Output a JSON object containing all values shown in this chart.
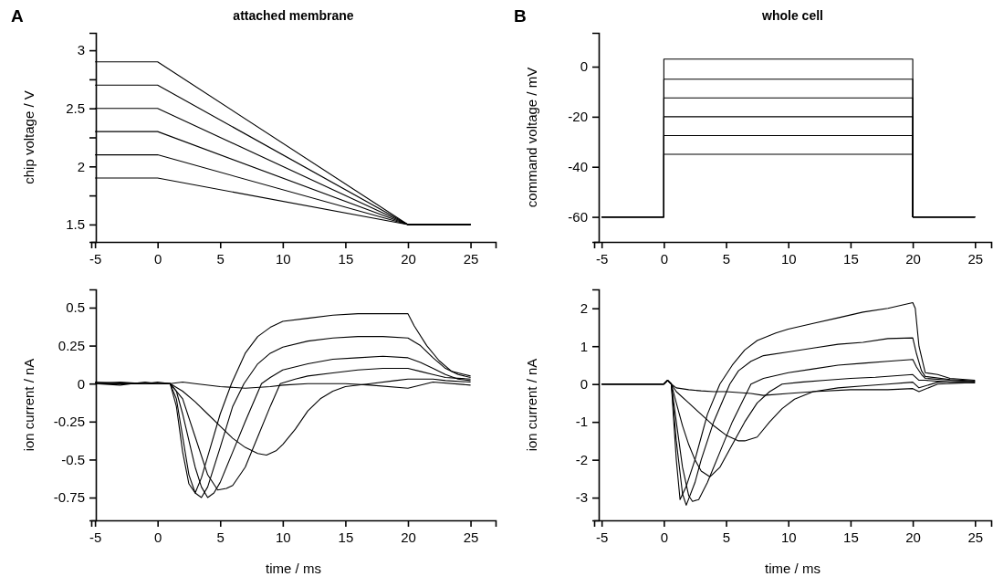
{
  "chart_data": [
    {
      "type": "line",
      "title": "attached membrane",
      "annotations": [
        "A"
      ],
      "ylabel": "chip voltage / V",
      "xlim": [
        -5.3,
        27
      ],
      "xticks": [
        -5,
        0,
        5,
        10,
        15,
        20,
        25
      ],
      "ylim": [
        1.35,
        3.15
      ],
      "yticks": [
        1.5,
        {
          "value": 1.75,
          "label": null
        },
        2,
        {
          "value": 2.25,
          "label": null
        },
        2.5,
        {
          "value": 2.75,
          "label": null
        },
        3
      ],
      "series": [
        {
          "color": "#000000",
          "x": [
            -5,
            0,
            20,
            25
          ],
          "values": [
            2.9,
            2.9,
            1.5,
            1.5
          ]
        },
        {
          "color": "#000000",
          "x": [
            -5,
            0,
            20,
            25
          ],
          "values": [
            2.7,
            2.7,
            1.5,
            1.5
          ]
        },
        {
          "color": "#000000",
          "x": [
            -5,
            0,
            20,
            25
          ],
          "values": [
            2.5,
            2.5,
            1.5,
            1.5
          ]
        },
        {
          "color": "#000000",
          "x": [
            -5,
            0,
            20,
            25
          ],
          "values": [
            2.3,
            2.3,
            1.5,
            1.5
          ]
        },
        {
          "color": "#000000",
          "x": [
            -5,
            0,
            20,
            25
          ],
          "values": [
            2.1,
            2.1,
            1.5,
            1.5
          ]
        },
        {
          "color": "#000000",
          "x": [
            -5,
            0,
            20,
            25
          ],
          "values": [
            1.9,
            1.9,
            1.5,
            1.5
          ]
        }
      ]
    },
    {
      "type": "line",
      "title": "whole cell",
      "annotations": [
        "B"
      ],
      "ylabel": "command voltage / mV",
      "xlim": [
        -5.6,
        26.3
      ],
      "xticks": [
        -5,
        0,
        5,
        10,
        15,
        20,
        25
      ],
      "ylim": [
        -70,
        13.5
      ],
      "yticks": [
        -60,
        -40,
        -20,
        0
      ],
      "series": [
        {
          "color": "#000000",
          "x": [
            -5,
            0,
            0,
            20,
            20,
            25
          ],
          "values": [
            -60,
            -60,
            3,
            3,
            -60,
            -60
          ]
        },
        {
          "color": "#000000",
          "x": [
            -5,
            0,
            0,
            20,
            20,
            25
          ],
          "values": [
            -60,
            -60,
            -5,
            -5,
            -60,
            -60
          ]
        },
        {
          "color": "#000000",
          "x": [
            -5,
            0,
            0,
            20,
            20,
            25
          ],
          "values": [
            -60,
            -60,
            -12.5,
            -12.5,
            -60,
            -60
          ]
        },
        {
          "color": "#000000",
          "x": [
            -5,
            0,
            0,
            20,
            20,
            25
          ],
          "values": [
            -60,
            -60,
            -20,
            -20,
            -60,
            -60
          ]
        },
        {
          "color": "#000000",
          "x": [
            -5,
            0,
            0,
            20,
            20,
            25
          ],
          "values": [
            -60,
            -60,
            -27.5,
            -27.5,
            -60,
            -60
          ]
        },
        {
          "color": "#000000",
          "x": [
            -5,
            0,
            0,
            20,
            20,
            25
          ],
          "values": [
            -60,
            -60,
            -35,
            -35,
            -60,
            -60
          ]
        }
      ]
    },
    {
      "type": "line",
      "xlabel": "time / ms",
      "ylabel": "ion current / nA",
      "xlim": [
        -5.3,
        27
      ],
      "xticks": [
        -5,
        0,
        5,
        10,
        15,
        20,
        25
      ],
      "ylim": [
        -0.9,
        0.62
      ],
      "yticks": [
        -0.75,
        -0.5,
        -0.25,
        0,
        0.25,
        0.5
      ],
      "series": [
        {
          "color": "#000000",
          "x": [
            -5,
            -3,
            -1,
            0,
            1,
            1.5,
            2,
            2.5,
            3,
            3.5,
            4,
            5,
            5.9,
            7,
            8,
            9,
            10,
            12,
            14,
            16,
            18,
            20,
            20.5,
            21.5,
            22.5,
            23.5,
            25
          ],
          "values": [
            0,
            0.01,
            0,
            0.01,
            0,
            -0.15,
            -0.45,
            -0.66,
            -0.72,
            -0.62,
            -0.48,
            -0.2,
            0,
            0.2,
            0.31,
            0.37,
            0.41,
            0.43,
            0.45,
            0.46,
            0.46,
            0.46,
            0.38,
            0.25,
            0.15,
            0.08,
            0.05
          ]
        },
        {
          "color": "#000000",
          "x": [
            -5,
            -3,
            -1,
            0,
            1,
            1.5,
            2,
            2.5,
            3,
            3.5,
            4,
            5,
            6,
            6.9,
            8,
            9,
            10,
            12,
            14,
            16,
            18,
            20,
            21,
            22,
            23,
            24,
            25
          ],
          "values": [
            0,
            -0.01,
            0.01,
            0,
            0,
            -0.1,
            -0.35,
            -0.6,
            -0.72,
            -0.75,
            -0.68,
            -0.42,
            -0.15,
            0,
            0.13,
            0.2,
            0.24,
            0.28,
            0.3,
            0.31,
            0.31,
            0.3,
            0.25,
            0.17,
            0.1,
            0.06,
            0.04
          ]
        },
        {
          "color": "#000000",
          "x": [
            -5,
            -1,
            0,
            1,
            1.5,
            2,
            3,
            3.5,
            4,
            4.5,
            5,
            6,
            7,
            8.3,
            9,
            10,
            12,
            14,
            16,
            18,
            20,
            21,
            22,
            23,
            24,
            25
          ],
          "values": [
            0,
            0,
            0,
            0,
            -0.05,
            -0.2,
            -0.55,
            -0.68,
            -0.75,
            -0.72,
            -0.65,
            -0.45,
            -0.25,
            0,
            0.04,
            0.09,
            0.13,
            0.16,
            0.17,
            0.18,
            0.17,
            0.14,
            0.1,
            0.06,
            0.03,
            0.02
          ]
        },
        {
          "color": "#000000",
          "x": [
            -5,
            -1,
            0,
            1,
            2,
            3,
            4,
            4.8,
            5.5,
            6,
            7,
            8,
            9,
            9.8,
            11,
            12,
            14,
            16,
            18,
            20,
            21,
            22,
            23,
            24,
            25
          ],
          "values": [
            0,
            0,
            0,
            0,
            -0.1,
            -0.35,
            -0.6,
            -0.7,
            -0.69,
            -0.67,
            -0.55,
            -0.35,
            -0.15,
            0,
            0.03,
            0.05,
            0.07,
            0.09,
            0.1,
            0.1,
            0.08,
            0.06,
            0.04,
            0.035,
            0.03
          ]
        },
        {
          "color": "#000000",
          "x": [
            -5,
            -1,
            0,
            1,
            2,
            3,
            4,
            5,
            6,
            7,
            8,
            8.7,
            9.5,
            10,
            11,
            12,
            13,
            14,
            15,
            17,
            19,
            20,
            22,
            23,
            25
          ],
          "values": [
            0,
            0,
            0,
            0,
            -0.05,
            -0.12,
            -0.2,
            -0.28,
            -0.36,
            -0.42,
            -0.46,
            -0.47,
            -0.44,
            -0.4,
            -0.3,
            -0.18,
            -0.1,
            -0.05,
            -0.02,
            0,
            0.02,
            0.03,
            0.03,
            0.02,
            0.01
          ]
        },
        {
          "color": "#000000",
          "x": [
            -5,
            -1,
            0,
            1,
            2,
            3,
            5,
            7,
            9,
            10,
            12,
            15,
            17,
            20,
            22,
            25
          ],
          "values": [
            0.01,
            0,
            0,
            0,
            0.01,
            0,
            -0.02,
            -0.03,
            -0.02,
            -0.01,
            0,
            0,
            -0.01,
            -0.03,
            0.01,
            -0.01
          ]
        }
      ]
    },
    {
      "type": "line",
      "xlabel": "time / ms",
      "ylabel": "ion current / nA",
      "xlim": [
        -5.6,
        26.3
      ],
      "xticks": [
        -5,
        0,
        5,
        10,
        15,
        20,
        25
      ],
      "ylim": [
        -3.6,
        2.5
      ],
      "yticks": [
        -3,
        -2,
        -1,
        0,
        1,
        2
      ],
      "series": [
        {
          "color": "#000000",
          "x": [
            -5,
            -2,
            0,
            0.3,
            0.6,
            1,
            1.3,
            1.8,
            2.5,
            3,
            3.5,
            4.5,
            5.5,
            6.5,
            7.5,
            9,
            10,
            12,
            14,
            16,
            18,
            20,
            20.2,
            20.5,
            21,
            22,
            23,
            25
          ],
          "values": [
            0,
            0,
            0,
            0.1,
            0,
            -2,
            -3.05,
            -2.7,
            -2,
            -1.4,
            -0.8,
            0,
            0.5,
            0.9,
            1.15,
            1.35,
            1.45,
            1.6,
            1.75,
            1.9,
            2.0,
            2.15,
            2.0,
            1.0,
            0.3,
            0.25,
            0.15,
            0.1
          ]
        },
        {
          "color": "#000000",
          "x": [
            -5,
            -2,
            0,
            0.3,
            0.6,
            1,
            1.5,
            1.8,
            2.5,
            3,
            4,
            5.3,
            6,
            7,
            8,
            10,
            12,
            14,
            16,
            18,
            20,
            20.3,
            20.7,
            21,
            23,
            25
          ],
          "values": [
            0,
            0,
            0,
            0.1,
            0,
            -1.5,
            -2.9,
            -3.2,
            -2.6,
            -2.0,
            -1.0,
            0,
            0.35,
            0.6,
            0.75,
            0.85,
            0.95,
            1.05,
            1.1,
            1.2,
            1.22,
            0.8,
            0.35,
            0.2,
            0.12,
            0.08
          ]
        },
        {
          "color": "#000000",
          "x": [
            -5,
            0,
            0.3,
            0.6,
            1,
            1.5,
            2,
            2.3,
            2.8,
            3.5,
            4.5,
            5.5,
            7,
            8,
            10,
            12,
            14,
            16,
            18,
            20,
            20.3,
            20.7,
            21,
            23,
            25
          ],
          "values": [
            0,
            0,
            0.1,
            0,
            -1.0,
            -2.2,
            -2.95,
            -3.1,
            -3.05,
            -2.6,
            -1.8,
            -1.0,
            0,
            0.15,
            0.3,
            0.4,
            0.5,
            0.55,
            0.6,
            0.65,
            0.45,
            0.25,
            0.15,
            0.1,
            0.06
          ]
        },
        {
          "color": "#000000",
          "x": [
            -5,
            0,
            0.3,
            0.6,
            1,
            1.5,
            2,
            2.5,
            3,
            3.7,
            4.5,
            5.5,
            6.5,
            7.5,
            8.5,
            9.5,
            11,
            13,
            15,
            17,
            20,
            20.5,
            21,
            23,
            25
          ],
          "values": [
            0,
            0,
            0.1,
            0,
            -0.5,
            -1.1,
            -1.6,
            -2.0,
            -2.3,
            -2.45,
            -2.2,
            -1.6,
            -1.0,
            -0.5,
            -0.2,
            0,
            0.05,
            0.1,
            0.15,
            0.18,
            0.25,
            0.1,
            0.1,
            0.05,
            0.03
          ]
        },
        {
          "color": "#000000",
          "x": [
            -5,
            0,
            0.3,
            0.6,
            1,
            2,
            3,
            4,
            5,
            6,
            6.5,
            7.5,
            8.5,
            9.5,
            10.5,
            12,
            14,
            16,
            18,
            20,
            20.5,
            22,
            25
          ],
          "values": [
            0,
            0,
            0.1,
            0,
            -0.2,
            -0.5,
            -0.8,
            -1.1,
            -1.35,
            -1.5,
            -1.5,
            -1.4,
            -1.0,
            -0.65,
            -0.4,
            -0.2,
            -0.1,
            -0.05,
            0,
            0.05,
            -0.1,
            0.05,
            0.07
          ]
        },
        {
          "color": "#000000",
          "x": [
            -5,
            0,
            0.3,
            0.6,
            1,
            2,
            3,
            4,
            5,
            7,
            8,
            10,
            12,
            15,
            18,
            20,
            20.5,
            22,
            25
          ],
          "values": [
            0,
            0,
            0.1,
            0,
            -0.1,
            -0.15,
            -0.18,
            -0.2,
            -0.2,
            -0.25,
            -0.3,
            -0.25,
            -0.2,
            -0.15,
            -0.15,
            -0.12,
            -0.2,
            0,
            0.04
          ]
        }
      ]
    }
  ]
}
